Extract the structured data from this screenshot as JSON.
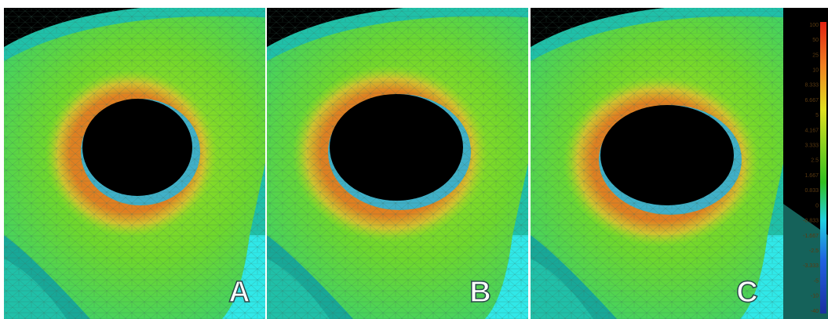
{
  "panels": [
    {
      "label": "A"
    },
    {
      "label": "B"
    },
    {
      "label": "C"
    }
  ],
  "colorbar": {
    "labels": [
      "100",
      "50",
      "25",
      "10",
      "8.333",
      "6.667",
      "5",
      "4.167",
      "3.333",
      "2.5",
      "1.667",
      "0.833",
      "0",
      "-0.833",
      "-1.667",
      "-2.5",
      "-3.333",
      "-5",
      "-10",
      "-40"
    ]
  }
}
